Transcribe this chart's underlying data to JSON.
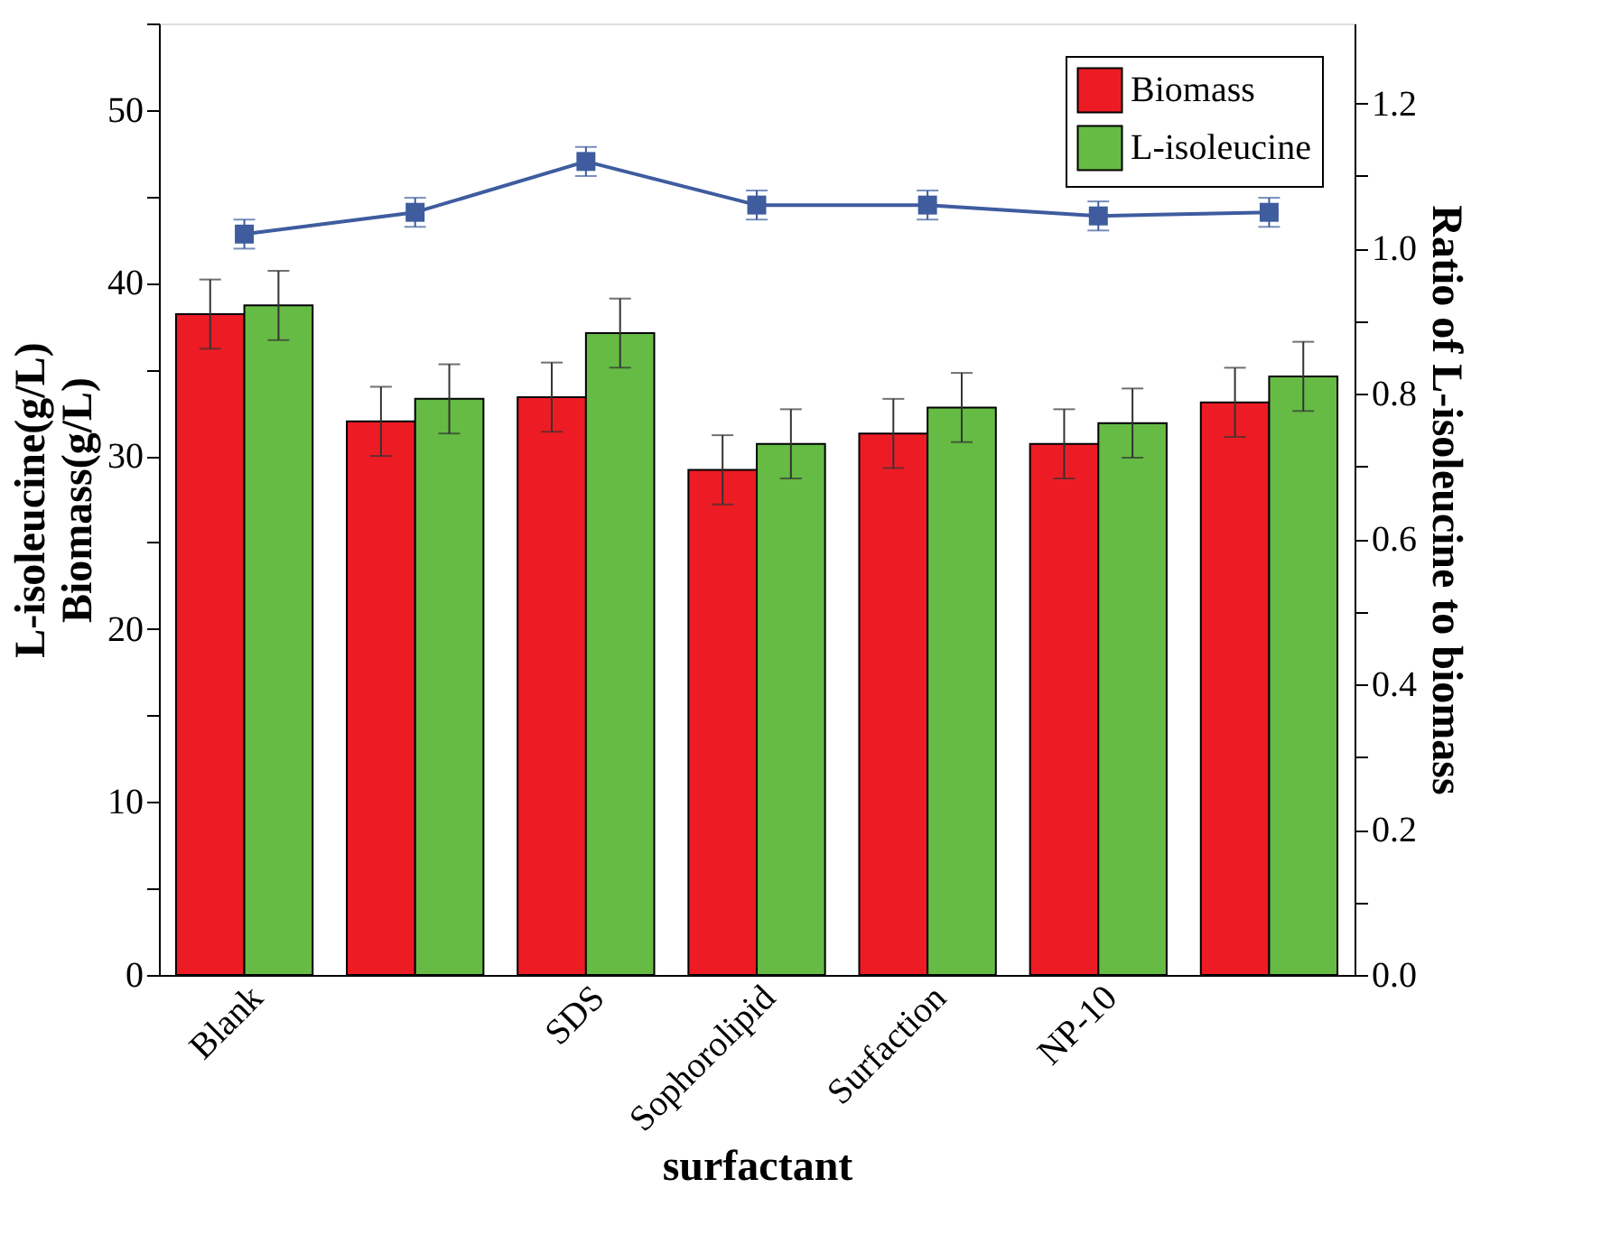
{
  "chart_data": {
    "type": "bar",
    "xlabel": "surfactant",
    "ylabel": "L-isoleucine(g/L)\nBiomass(g/L)",
    "y2label": "Ratio of L-isoleucine to biomass",
    "categories": [
      "Blank",
      null,
      "SDS",
      "Sophorolipid",
      "Surfaction",
      "NP-10",
      null
    ],
    "series": [
      {
        "name": "Biomass",
        "color": "#ed1c24",
        "values": [
          38.2,
          32.0,
          33.4,
          29.2,
          31.3,
          30.7,
          33.1
        ],
        "errors": [
          2,
          2,
          2,
          2,
          2,
          2,
          2
        ]
      },
      {
        "name": "L-isoleucine",
        "color": "#66bb44",
        "values": [
          38.7,
          33.3,
          37.1,
          30.7,
          32.8,
          31.9,
          34.6
        ],
        "errors": [
          2,
          2,
          2,
          2,
          2,
          2,
          2
        ]
      },
      {
        "type": "line",
        "axis": "y2",
        "color": "#3e5c9e",
        "marker": "square",
        "values": [
          1.02,
          1.05,
          1.12,
          1.06,
          1.06,
          1.045,
          1.05
        ],
        "errors": [
          0.02,
          0.02,
          0.02,
          0.02,
          0.02,
          0.02,
          0.02
        ]
      }
    ],
    "ylim": [
      0,
      55
    ],
    "yticks": [
      0,
      {
        "value": 5,
        "label": null
      },
      10,
      {
        "value": 15,
        "label": null
      },
      20,
      {
        "value": 25,
        "label": null
      },
      30,
      {
        "value": 35,
        "label": null
      },
      40,
      {
        "value": 45,
        "label": null
      },
      50,
      {
        "value": 55,
        "label": null
      }
    ],
    "y2lim": [
      0,
      1.31
    ],
    "y2ticks": [
      {
        "value": 0,
        "label": "0.0"
      },
      {
        "value": 0.1,
        "label": null
      },
      {
        "value": 0.2,
        "label": "0.2"
      },
      {
        "value": 0.3,
        "label": null
      },
      {
        "value": 0.4,
        "label": "0.4"
      },
      {
        "value": 0.5,
        "label": null
      },
      {
        "value": 0.6,
        "label": "0.6"
      },
      {
        "value": 0.7,
        "label": null
      },
      {
        "value": 0.8,
        "label": "0.8"
      },
      {
        "value": 0.9,
        "label": null
      },
      {
        "value": 1.0,
        "label": "1.0"
      },
      {
        "value": 1.1,
        "label": null
      },
      {
        "value": 1.2,
        "label": "1.2"
      }
    ],
    "legend": "top right",
    "grid": false
  }
}
